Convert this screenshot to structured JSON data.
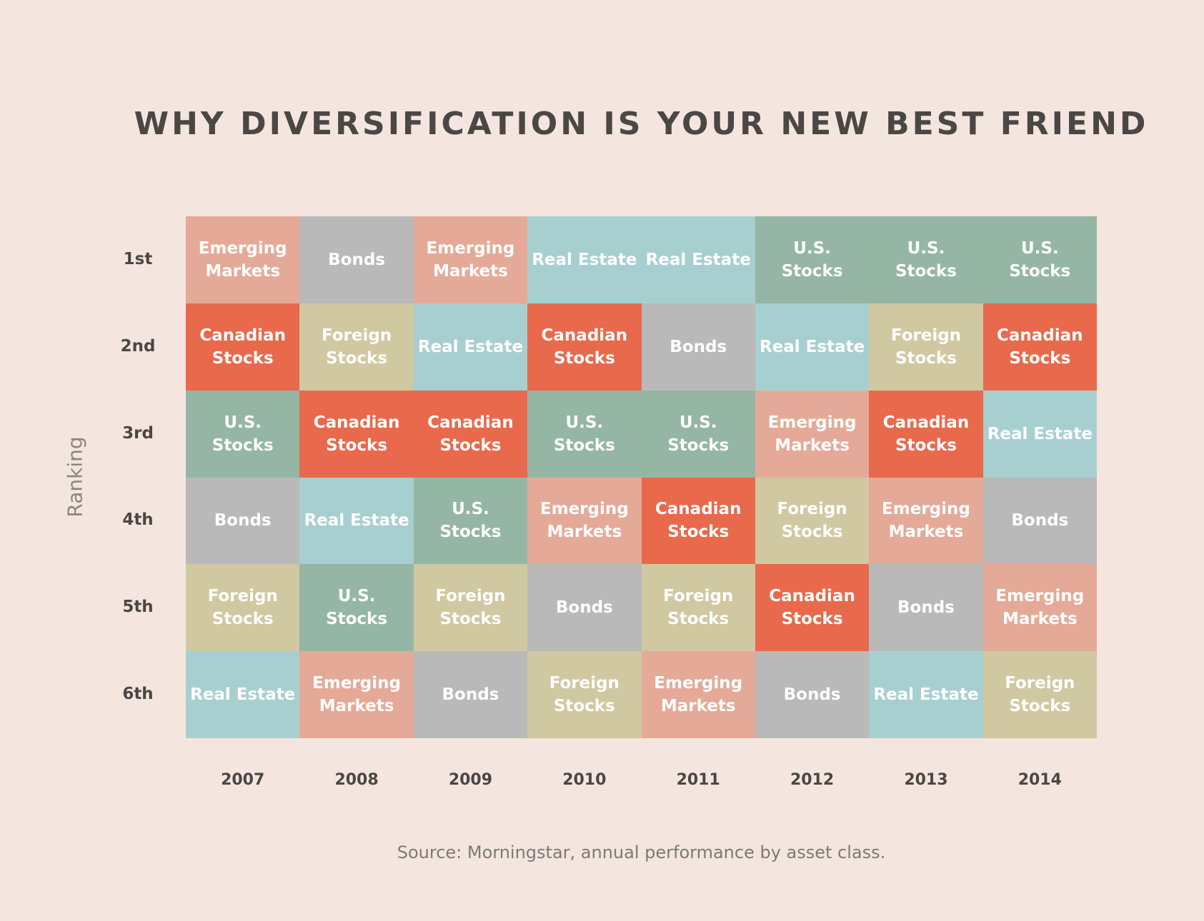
{
  "chart_data": {
    "type": "table",
    "title": "WHY DIVERSIFICATION IS YOUR NEW BEST FRIEND",
    "ylabel": "Ranking",
    "source": "Source: Morningstar, annual performance by asset class.",
    "rows": [
      "1st",
      "2nd",
      "3rd",
      "4th",
      "5th",
      "6th"
    ],
    "columns": [
      "2007",
      "2008",
      "2009",
      "2010",
      "2011",
      "2012",
      "2013",
      "2014"
    ],
    "colors": {
      "Emerging Markets": "#e4aa97",
      "Bonds": "#b9b9b9",
      "Real Estate": "#a8cfd0",
      "U.S. Stocks": "#95b6a4",
      "Canadian Stocks": "#e8694b",
      "Foreign Stocks": "#d0c8a1"
    },
    "rankings": [
      [
        "Emerging Markets",
        "Bonds",
        "Emerging Markets",
        "Real Estate",
        "Real Estate",
        "U.S. Stocks",
        "U.S. Stocks",
        "U.S. Stocks"
      ],
      [
        "Canadian Stocks",
        "Foreign Stocks",
        "Real Estate",
        "Canadian Stocks",
        "Bonds",
        "Real Estate",
        "Foreign Stocks",
        "Canadian Stocks"
      ],
      [
        "U.S. Stocks",
        "Canadian Stocks",
        "Canadian Stocks",
        "U.S. Stocks",
        "U.S. Stocks",
        "Emerging Markets",
        "Canadian Stocks",
        "Real Estate"
      ],
      [
        "Bonds",
        "Real Estate",
        "U.S. Stocks",
        "Emerging Markets",
        "Canadian Stocks",
        "Foreign Stocks",
        "Emerging Markets",
        "Bonds"
      ],
      [
        "Foreign Stocks",
        "U.S. Stocks",
        "Foreign Stocks",
        "Bonds",
        "Foreign Stocks",
        "Canadian Stocks",
        "Bonds",
        "Emerging Markets"
      ],
      [
        "Real Estate",
        "Emerging Markets",
        "Bonds",
        "Foreign Stocks",
        "Emerging Markets",
        "Bonds",
        "Real Estate",
        "Foreign Stocks"
      ]
    ]
  }
}
